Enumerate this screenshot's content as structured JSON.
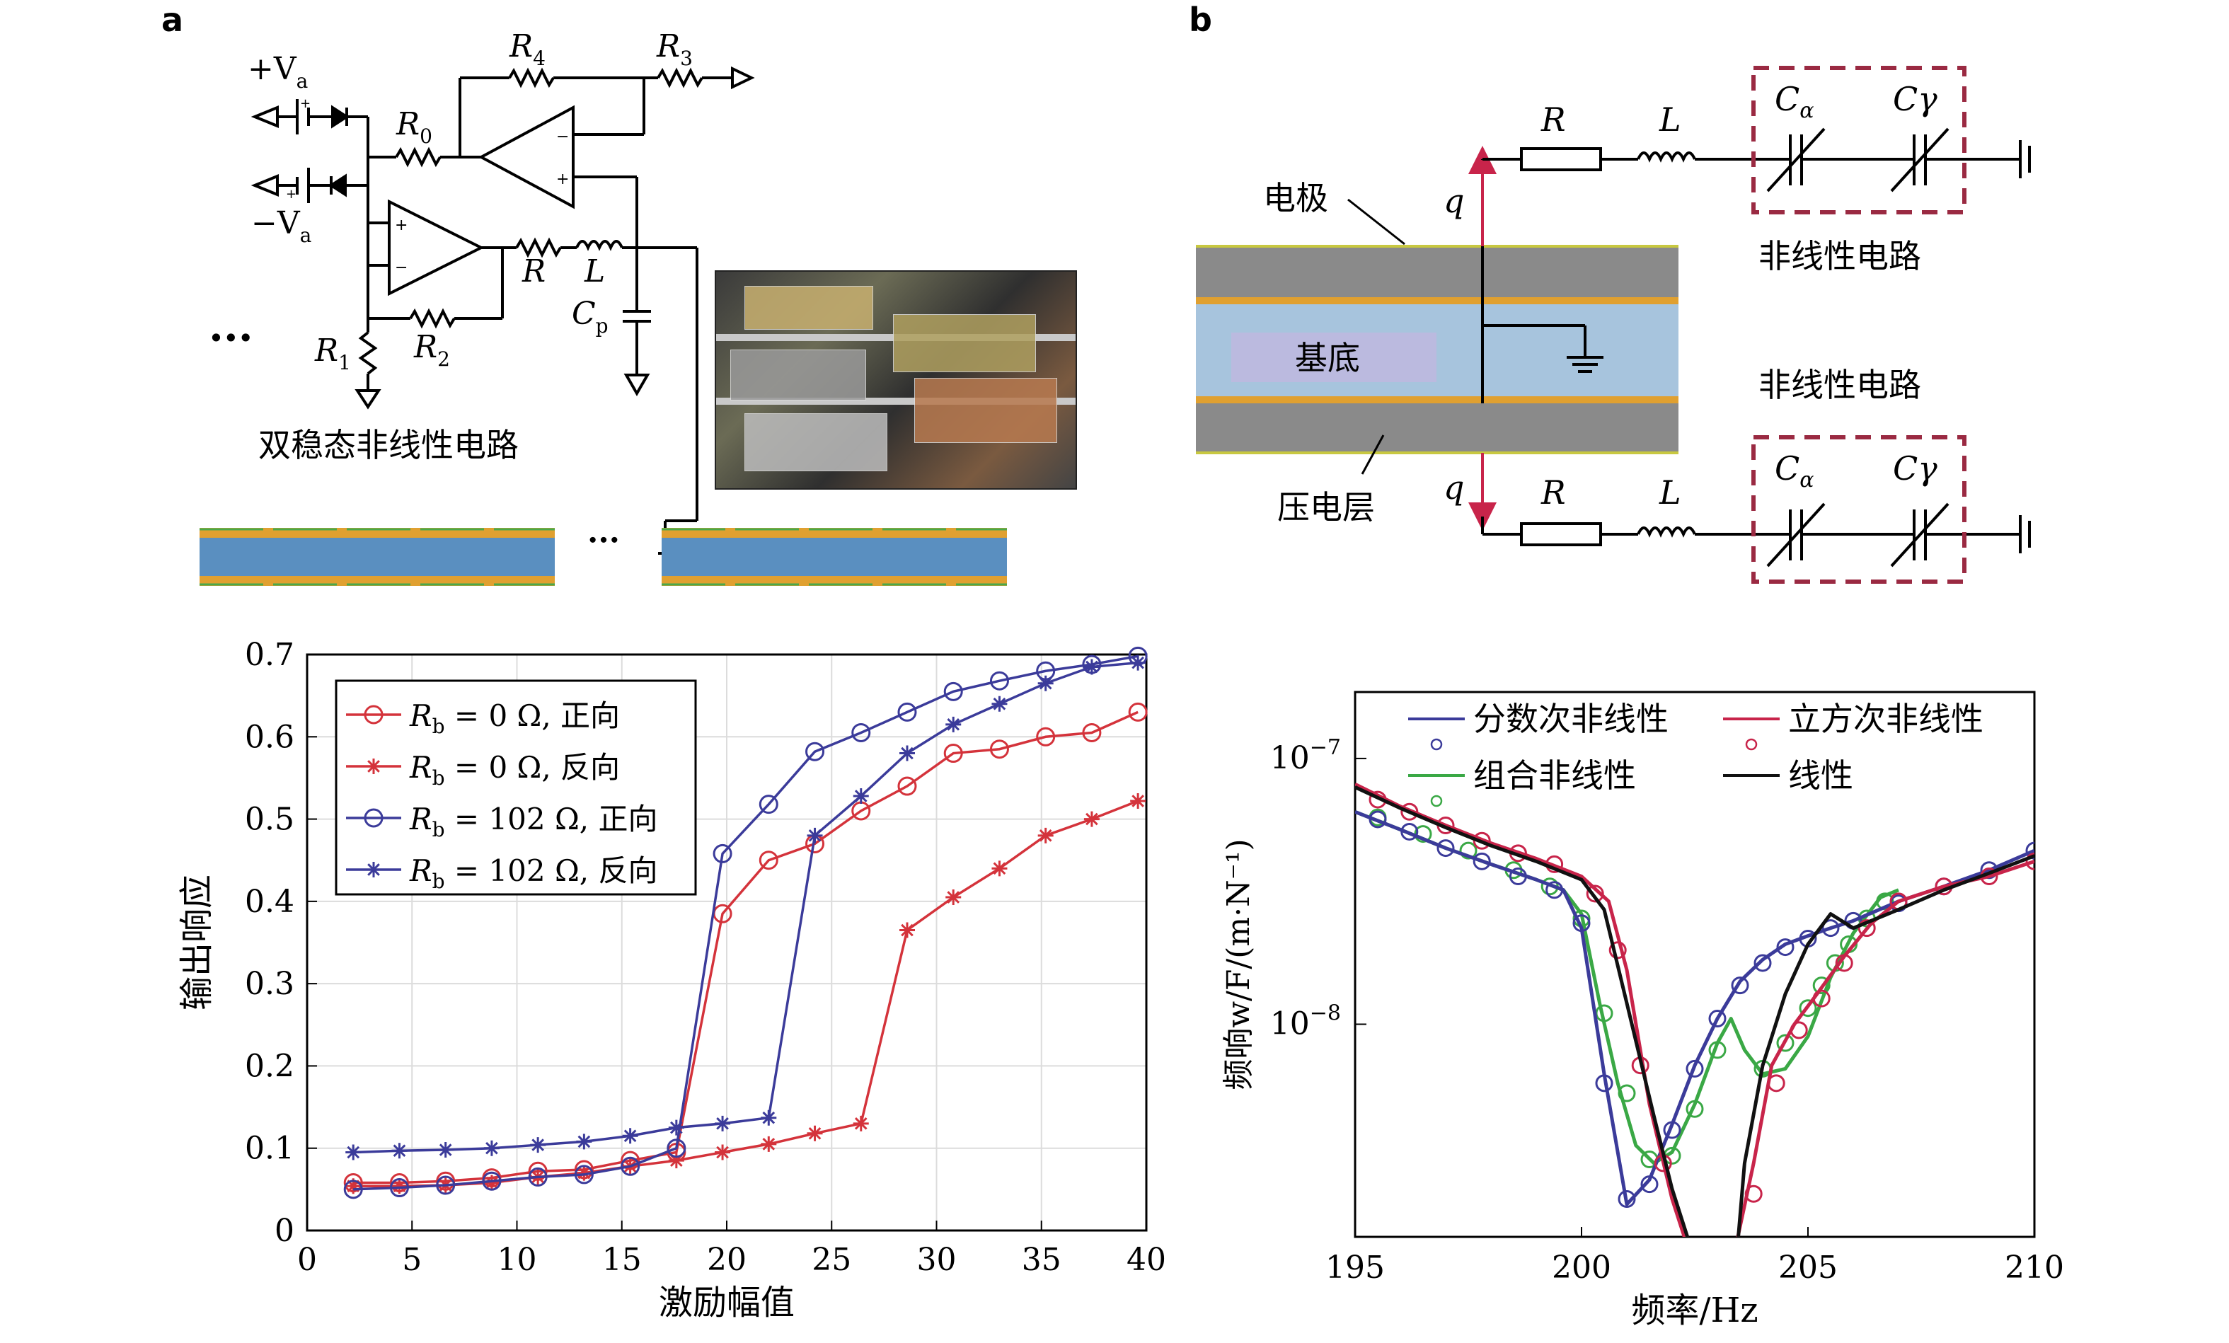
{
  "panel_a": {
    "label": "a",
    "circuit_title": "双稳态非线性电路",
    "labels": {
      "plus_va": "+V",
      "minus_va": "−V",
      "va_sub": "a",
      "r0": "R",
      "r0_sub": "0",
      "r1": "R",
      "r1_sub": "1",
      "r2": "R",
      "r2_sub": "2",
      "r3": "R",
      "r3_sub": "3",
      "r4": "R",
      "r4_sub": "4",
      "r": "R",
      "l": "L",
      "cp": "C",
      "cp_sub": "p",
      "ellipsis": "···",
      "ellipsis2": "···"
    }
  },
  "panel_b": {
    "label": "b",
    "labels": {
      "electrode": "电极",
      "substrate": "基底",
      "piezo": "压电层",
      "nonlinear_top": "非线性电路",
      "nonlinear_bottom": "非线性电路",
      "q": "q",
      "r": "R",
      "l": "L",
      "c_alpha": "C",
      "c_alpha_sub": "α",
      "c_gamma": "Cγ"
    }
  },
  "chart_data": [
    {
      "type": "line",
      "xlabel": "激励幅值",
      "ylabel": "输出响应",
      "xlim": [
        0,
        40
      ],
      "ylim": [
        0,
        0.7
      ],
      "xticks": [
        0,
        5,
        10,
        15,
        20,
        25,
        30,
        35,
        40
      ],
      "yticks": [
        0,
        0.1,
        0.2,
        0.3,
        0.4,
        0.5,
        0.6,
        0.7
      ],
      "tick_labels_x": [
        "0",
        "5",
        "10",
        "15",
        "20",
        "25",
        "30",
        "35",
        "40"
      ],
      "tick_labels_y": [
        "0",
        "0.1",
        "0.2",
        "0.3",
        "0.4",
        "0.5",
        "0.6",
        "0.7"
      ],
      "grid": true,
      "legend_position": "top-left",
      "series": [
        {
          "name": "Rb = 0 Ω, 正向",
          "legend_main": "R",
          "legend_sub": "b",
          "legend_rest": " = 0 Ω, 正向",
          "color": "#d4333b",
          "marker": "circle",
          "x": [
            2.2,
            4.4,
            6.6,
            8.8,
            11,
            13.2,
            15.4,
            17.6,
            19.8,
            22,
            24.2,
            26.4,
            28.6,
            30.8,
            33,
            35.2,
            37.4,
            39.6
          ],
          "y": [
            0.058,
            0.058,
            0.06,
            0.064,
            0.072,
            0.074,
            0.085,
            0.095,
            0.385,
            0.45,
            0.47,
            0.51,
            0.54,
            0.58,
            0.585,
            0.6,
            0.605,
            0.63
          ]
        },
        {
          "name": "Rb = 0 Ω, 反向",
          "legend_main": "R",
          "legend_sub": "b",
          "legend_rest": " = 0 Ω, 反向",
          "color": "#d4333b",
          "marker": "star",
          "x": [
            2.2,
            4.4,
            6.6,
            8.8,
            11,
            13.2,
            15.4,
            17.6,
            19.8,
            22,
            24.2,
            26.4,
            28.6,
            30.8,
            33,
            35.2,
            37.4,
            39.6
          ],
          "y": [
            0.054,
            0.054,
            0.055,
            0.058,
            0.065,
            0.07,
            0.078,
            0.085,
            0.095,
            0.105,
            0.118,
            0.13,
            0.365,
            0.405,
            0.44,
            0.48,
            0.5,
            0.522
          ]
        },
        {
          "name": "Rb = 102 Ω, 正向",
          "legend_main": "R",
          "legend_sub": "b",
          "legend_rest": " = 102 Ω, 正向",
          "color": "#3b3b9a",
          "marker": "circle",
          "x": [
            2.2,
            4.4,
            6.6,
            8.8,
            11,
            13.2,
            15.4,
            17.6,
            19.8,
            22,
            24.2,
            26.4,
            28.6,
            30.8,
            33,
            35.2,
            37.4,
            39.6
          ],
          "y": [
            0.05,
            0.052,
            0.055,
            0.06,
            0.065,
            0.068,
            0.078,
            0.1,
            0.458,
            0.518,
            0.582,
            0.605,
            0.63,
            0.655,
            0.668,
            0.68,
            0.688,
            0.698
          ]
        },
        {
          "name": "Rb = 102 Ω, 反向",
          "legend_main": "R",
          "legend_sub": "b",
          "legend_rest": " = 102 Ω, 反向",
          "color": "#3b3b9a",
          "marker": "star",
          "x": [
            2.2,
            4.4,
            6.6,
            8.8,
            11,
            13.2,
            15.4,
            17.6,
            19.8,
            22,
            24.2,
            26.4,
            28.6,
            30.8,
            33,
            35.2,
            37.4,
            39.6
          ],
          "y": [
            0.095,
            0.097,
            0.098,
            0.1,
            0.104,
            0.108,
            0.115,
            0.125,
            0.13,
            0.137,
            0.48,
            0.528,
            0.58,
            0.615,
            0.64,
            0.665,
            0.685,
            0.69
          ]
        }
      ]
    },
    {
      "type": "line",
      "xlabel": "频率/Hz",
      "ylabel": "频响w/F/(m·N⁻¹)",
      "xlim": [
        195,
        210
      ],
      "ylog": true,
      "yticks": [
        1e-08,
        1e-07
      ],
      "tick_labels_x": [
        "195",
        "200",
        "205",
        "210"
      ],
      "tick_labels_y_base": "10",
      "tick_labels_y_exp": [
        "−8",
        "−7"
      ],
      "grid": false,
      "legend_position": "top",
      "series": [
        {
          "name": "分数次非线性",
          "color": "#3b3b9a",
          "line_x": [
            195,
            196,
            197,
            198,
            199,
            199.6,
            200,
            200.5,
            201,
            201.5,
            202,
            202.5,
            203,
            203.5,
            204,
            204.5,
            205,
            205.5,
            206,
            207,
            208,
            209,
            210
          ],
          "line_y": [
            6.3e-08,
            5.4e-08,
            4.6e-08,
            4e-08,
            3.5e-08,
            3.2e-08,
            2.3e-08,
            6.5e-09,
            2.1e-09,
            2.6e-09,
            4.2e-09,
            7e-09,
            1.05e-08,
            1.45e-08,
            1.75e-08,
            2e-08,
            2.15e-08,
            2.3e-08,
            2.45e-08,
            2.9e-08,
            3.3e-08,
            3.8e-08,
            4.5e-08
          ],
          "marker_x": [
            195.5,
            196.2,
            197,
            197.8,
            198.6,
            199.4,
            200,
            200.5,
            201,
            201.5,
            202,
            202.5,
            203,
            203.5,
            204,
            204.5,
            205,
            205.5,
            206,
            207,
            208,
            209,
            210
          ],
          "marker_y": [
            5.9e-08,
            5.3e-08,
            4.6e-08,
            4.1e-08,
            3.6e-08,
            3.2e-08,
            2.4e-08,
            6e-09,
            2.2e-09,
            2.5e-09,
            4e-09,
            6.8e-09,
            1.05e-08,
            1.4e-08,
            1.7e-08,
            1.95e-08,
            2.1e-08,
            2.3e-08,
            2.45e-08,
            2.85e-08,
            3.3e-08,
            3.8e-08,
            4.5e-08
          ]
        },
        {
          "name": "立方次非线性",
          "color": "#c8244a",
          "line_x": [
            195,
            196,
            197,
            198,
            199,
            200,
            200.6,
            201,
            201.5,
            202,
            202.5,
            203.3,
            203.8,
            204.2,
            204.7,
            205.2,
            205.8,
            206.4,
            207,
            208,
            209,
            210
          ],
          "line_y": [
            8e-08,
            6.6e-08,
            5.6e-08,
            4.8e-08,
            4.2e-08,
            3.6e-08,
            2.9e-08,
            1.6e-08,
            5e-09,
            2.2e-09,
            1.2e-09,
            1.2e-09,
            3e-09,
            7e-09,
            1e-08,
            1.3e-08,
            1.8e-08,
            2.4e-08,
            2.9e-08,
            3.3e-08,
            3.6e-08,
            4.1e-08
          ],
          "marker_x": [
            195.5,
            196.2,
            197,
            197.8,
            198.6,
            199.4,
            200.3,
            200.8,
            201.3,
            201.8,
            203.8,
            204.3,
            204.8,
            205.3,
            205.8,
            206.3,
            207,
            208,
            209,
            210
          ],
          "marker_y": [
            7e-08,
            6.3e-08,
            5.6e-08,
            4.9e-08,
            4.4e-08,
            4e-08,
            3.1e-08,
            1.9e-08,
            7e-09,
            3e-09,
            2.3e-09,
            6e-09,
            9.5e-09,
            1.25e-08,
            1.7e-08,
            2.3e-08,
            2.9e-08,
            3.3e-08,
            3.6e-08,
            4.1e-08
          ]
        },
        {
          "name": "组合非线性",
          "color": "#3aa845",
          "line_x": [
            195,
            196,
            197,
            198,
            199,
            199.6,
            200,
            200.4,
            200.8,
            201.2,
            201.6,
            202,
            202.5,
            203,
            203.3,
            203.6,
            204,
            204.5,
            205,
            205.5,
            206,
            206.6,
            207
          ],
          "line_y": [
            6.3e-08,
            5.4e-08,
            4.6e-08,
            4e-08,
            3.5e-08,
            3.2e-08,
            2.6e-08,
            1.2e-08,
            6e-09,
            3.5e-09,
            3e-09,
            3.3e-09,
            5e-09,
            8.5e-09,
            1.05e-08,
            8e-09,
            6.5e-09,
            6.8e-09,
            9e-09,
            1.5e-08,
            2.2e-08,
            3e-08,
            3.2e-08
          ],
          "marker_x": [
            195.5,
            196.5,
            197.5,
            198.5,
            199.3,
            200,
            200.5,
            201,
            201.5,
            202,
            202.5,
            203,
            204,
            204.5,
            205,
            205.3,
            205.6,
            205.9,
            206.3,
            206.7
          ],
          "marker_y": [
            6e-08,
            5.2e-08,
            4.5e-08,
            3.8e-08,
            3.3e-08,
            2.5e-08,
            1.1e-08,
            5.5e-09,
            3.1e-09,
            3.2e-09,
            4.8e-09,
            8e-09,
            6.8e-09,
            8.5e-09,
            1.15e-08,
            1.4e-08,
            1.7e-08,
            2e-08,
            2.5e-08,
            2.9e-08
          ]
        },
        {
          "name": "线性",
          "color": "#111111",
          "line_x": [
            195,
            196,
            197,
            198,
            199,
            200,
            200.5,
            201,
            201.6,
            202,
            202.5,
            203,
            203.3,
            203.6,
            204,
            204.5,
            205,
            205.5,
            206,
            207,
            208,
            209,
            210
          ],
          "line_y": [
            7.8e-08,
            6.5e-08,
            5.5e-08,
            4.7e-08,
            4.1e-08,
            3.5e-08,
            2.7e-08,
            1.2e-08,
            4.5e-09,
            2.4e-09,
            1.3e-09,
            8e-10,
            7.5e-10,
            3e-09,
            7e-09,
            1.3e-08,
            2e-08,
            2.6e-08,
            2.3e-08,
            2.7e-08,
            3.2e-08,
            3.7e-08,
            4.3e-08
          ]
        }
      ]
    }
  ]
}
